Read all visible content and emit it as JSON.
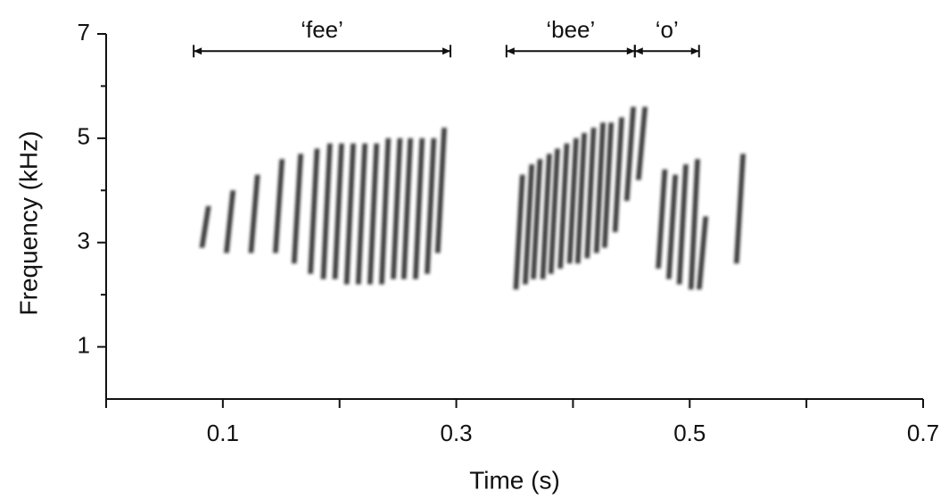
{
  "chart_data": {
    "type": "spectrogram",
    "xlabel": "Time (s)",
    "ylabel": "Frequency (kHz)",
    "xlim": [
      0,
      0.7
    ],
    "ylim": [
      0,
      7
    ],
    "xticks": [
      0.1,
      0.3,
      0.5,
      0.7
    ],
    "xminorticks": [
      0,
      0.2,
      0.4,
      0.6
    ],
    "yticks": [
      1,
      3,
      5,
      7
    ],
    "yminorticks": [
      2,
      4,
      6
    ],
    "color": "#1a1a1a",
    "annotations": [
      {
        "text": "‘fee’",
        "x": [
          0.075,
          0.295
        ],
        "y": 6.67
      },
      {
        "text": "‘bee’",
        "x": [
          0.343,
          0.453
        ],
        "y": 6.67
      },
      {
        "text": "‘o’",
        "x": [
          0.453,
          0.508
        ],
        "y": 6.67
      }
    ],
    "strokes": {
      "x": [
        0.083,
        0.104,
        0.125,
        0.146,
        0.162,
        0.176,
        0.187,
        0.197,
        0.207,
        0.217,
        0.227,
        0.237,
        0.247,
        0.256,
        0.266,
        0.276,
        0.285,
        0.352,
        0.36,
        0.367,
        0.375,
        0.382,
        0.39,
        0.398,
        0.405,
        0.413,
        0.421,
        0.428,
        0.437,
        0.447,
        0.457,
        0.474,
        0.483,
        0.492,
        0.502,
        0.509,
        0.541
      ],
      "low": [
        2.9,
        2.8,
        2.8,
        2.8,
        2.6,
        2.4,
        2.3,
        2.3,
        2.2,
        2.2,
        2.2,
        2.2,
        2.3,
        2.3,
        2.3,
        2.4,
        2.8,
        2.1,
        2.2,
        2.3,
        2.3,
        2.4,
        2.5,
        2.6,
        2.6,
        2.7,
        2.8,
        2.9,
        3.2,
        3.8,
        4.2,
        2.5,
        2.3,
        2.2,
        2.1,
        2.1,
        2.6
      ],
      "high": [
        3.7,
        4.0,
        4.3,
        4.6,
        4.7,
        4.8,
        4.9,
        4.9,
        4.9,
        4.9,
        4.9,
        5.0,
        5.0,
        5.0,
        5.0,
        5.0,
        5.2,
        4.3,
        4.5,
        4.6,
        4.7,
        4.8,
        4.9,
        5.0,
        5.1,
        5.2,
        5.3,
        5.3,
        5.4,
        5.6,
        5.6,
        4.4,
        4.3,
        4.5,
        4.6,
        3.5,
        4.7
      ]
    }
  }
}
